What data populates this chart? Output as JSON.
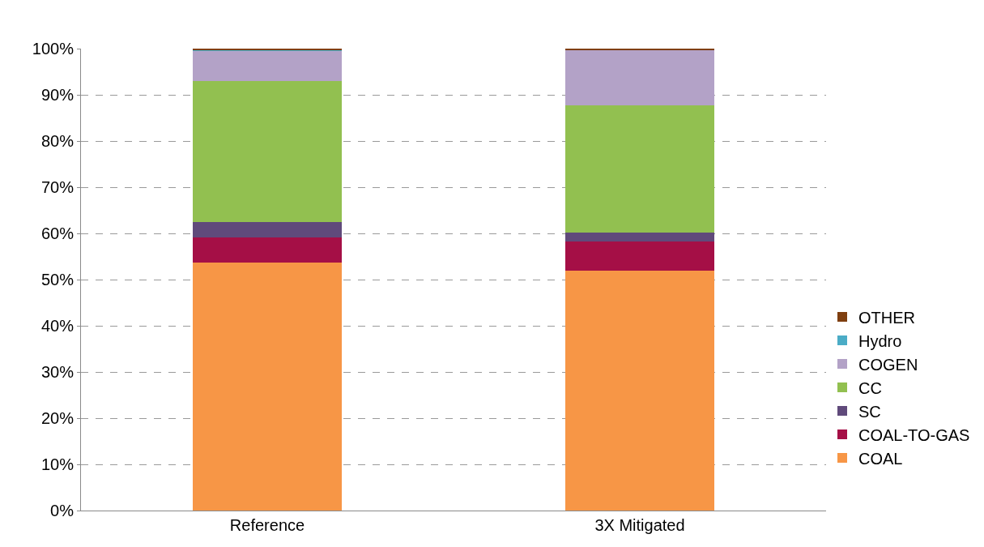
{
  "chart_data": {
    "type": "bar",
    "stacked": true,
    "categories": [
      "Reference",
      "3X Mitigated"
    ],
    "series": [
      {
        "name": "COAL",
        "color": "#f79646",
        "values": [
          53.6,
          52.0
        ]
      },
      {
        "name": "COAL-TO-GAS",
        "color": "#a50f46",
        "values": [
          5.5,
          6.3
        ]
      },
      {
        "name": "SC",
        "color": "#604a7b",
        "values": [
          3.4,
          1.9
        ]
      },
      {
        "name": "CC",
        "color": "#92c050",
        "values": [
          30.4,
          27.5
        ]
      },
      {
        "name": "COGEN",
        "color": "#b3a2c7",
        "values": [
          6.7,
          12.0
        ]
      },
      {
        "name": "Hydro",
        "color": "#4bacc6",
        "values": [
          0.2,
          null
        ]
      },
      {
        "name": "OTHER",
        "color": "#7f3f10",
        "values": [
          0.2,
          0.2
        ]
      }
    ],
    "ylim": [
      0,
      100
    ],
    "yticks": [
      {
        "value": 0,
        "label": "0%"
      },
      {
        "value": 10,
        "label": "10%"
      },
      {
        "value": 20,
        "label": "20%"
      },
      {
        "value": 30,
        "label": "30%"
      },
      {
        "value": 40,
        "label": "40%"
      },
      {
        "value": 50,
        "label": "50%"
      },
      {
        "value": 60,
        "label": "60%"
      },
      {
        "value": 70,
        "label": "70%"
      },
      {
        "value": 80,
        "label": "80%"
      },
      {
        "value": 90,
        "label": "90%"
      },
      {
        "value": 100,
        "label": "100%"
      }
    ],
    "grid": "y",
    "legend": "right"
  }
}
